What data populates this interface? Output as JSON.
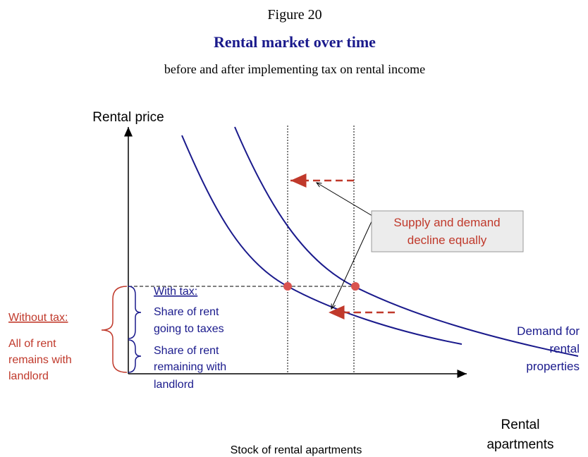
{
  "header": {
    "figure": "Figure 20",
    "title": "Rental market over time",
    "subtitle": "before and after implementing tax on rental income"
  },
  "axes": {
    "y_label": "Rental price",
    "x_label": [
      "Rental",
      "apartments"
    ],
    "x_caption": "Stock of rental apartments"
  },
  "callout": [
    "Supply and demand",
    "decline equally"
  ],
  "with_tax": {
    "heading": "With tax:",
    "taxes": [
      "Share of rent",
      "going to taxes"
    ],
    "landlord": [
      "Share of rent",
      "remaining with",
      "landlord"
    ]
  },
  "without_tax": {
    "heading": "Without tax:",
    "lines": [
      "All of rent",
      "remains with",
      "landlord"
    ]
  },
  "demand_label": [
    "Demand for",
    "rental",
    "properties"
  ]
}
